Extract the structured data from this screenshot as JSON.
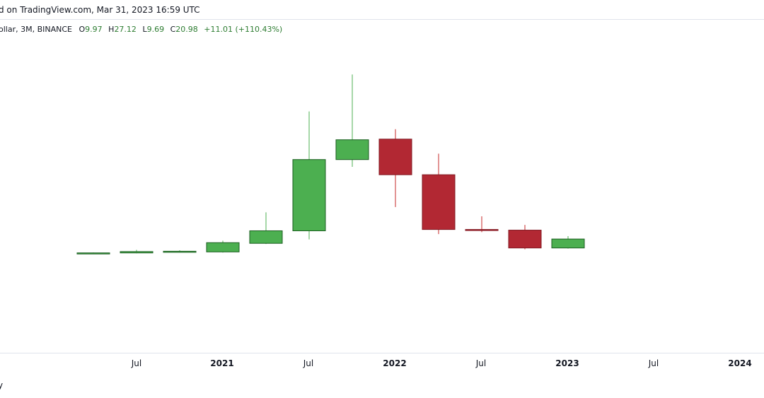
{
  "header": {
    "published": "d on TradingView.com, Mar 31, 2023 16:59 UTC"
  },
  "legend": {
    "symbol": "ollar, 3M, BINANCE",
    "open_label": "O",
    "open": "9.97",
    "high_label": "H",
    "high": "27.12",
    "low_label": "L",
    "low": "9.69",
    "close_label": "C",
    "close": "20.98",
    "change": "+11.01 (+110.43%)"
  },
  "footer": {
    "text": "y"
  },
  "colors": {
    "up": "#4caf50",
    "down": "#b22833",
    "up_border": "#1b5e20",
    "down_border": "#801922",
    "up_wick": "#4caf50",
    "down_wick": "#c62828"
  },
  "chart_data": {
    "type": "candlestick",
    "x_ticks": [
      "Jul",
      "2021",
      "Jul",
      "2022",
      "Jul",
      "2023",
      "Jul",
      "2024"
    ],
    "candles": [
      {
        "period": "2020 Q1",
        "open": 0.3,
        "high": 0.4,
        "low": 0.2,
        "close": 0.35
      },
      {
        "period": "2020 Q2",
        "open": 0.35,
        "high": 0.8,
        "low": 0.3,
        "close": 0.55
      },
      {
        "period": "2020 Q3",
        "open": 0.55,
        "high": 0.75,
        "low": 0.5,
        "close": 0.6
      },
      {
        "period": "2020 Q4",
        "open": 0.5,
        "high": 2.2,
        "low": 0.4,
        "close": 1.9
      },
      {
        "period": "2021 Q1",
        "open": 1.8,
        "high": 6.5,
        "low": 1.7,
        "close": 3.7
      },
      {
        "period": "2021 Q2",
        "open": 3.7,
        "high": 21.8,
        "low": 2.4,
        "close": 14.5
      },
      {
        "period": "2021 Q3",
        "open": 14.5,
        "high": 27.4,
        "low": 13.4,
        "close": 17.5
      },
      {
        "period": "2021 Q4",
        "open": 17.6,
        "high": 19.1,
        "low": 7.3,
        "close": 12.2
      },
      {
        "period": "2022 Q1",
        "open": 12.2,
        "high": 15.4,
        "low": 3.2,
        "close": 3.9
      },
      {
        "period": "2022 Q2",
        "open": 3.9,
        "high": 5.9,
        "low": 3.5,
        "close": 3.8
      },
      {
        "period": "2022 Q3",
        "open": 3.8,
        "high": 4.6,
        "low": 0.9,
        "close": 1.1
      },
      {
        "period": "2022 Q4",
        "open": 1.1,
        "high": 2.9,
        "low": 1.0,
        "close": 2.45
      }
    ]
  }
}
